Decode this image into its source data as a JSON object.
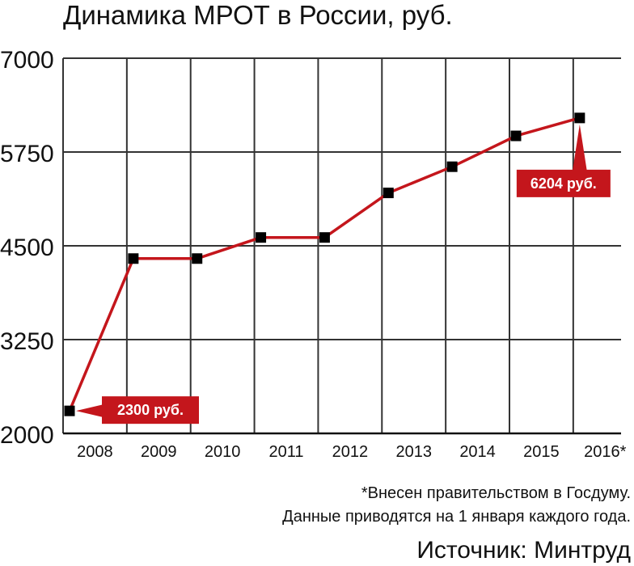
{
  "chart_data": {
    "type": "line",
    "title": "Динамика МРОТ в России, руб.",
    "categories": [
      "2008",
      "2009",
      "2010",
      "2011",
      "2012",
      "2013",
      "2014",
      "2015",
      "2016*"
    ],
    "values": [
      2300,
      4330,
      4330,
      4611,
      4611,
      5205,
      5554,
      5965,
      6204
    ],
    "ylim": [
      2000,
      7000
    ],
    "yticks": [
      "2000",
      "3250",
      "4500",
      "5750",
      "7000"
    ],
    "grid": true,
    "annotations": [
      {
        "label": "2300 руб.",
        "index": 0
      },
      {
        "label": "6204 руб.",
        "index": 8
      }
    ]
  },
  "colors": {
    "line": "#c4161c",
    "marker": "#000000",
    "callout": "#c4161c",
    "grid": "#333333"
  },
  "footnote": "*Внесен правительством в Госдуму.",
  "note": "Данные приводятся на 1 января каждого года.",
  "source": "Источник: Минтруд"
}
